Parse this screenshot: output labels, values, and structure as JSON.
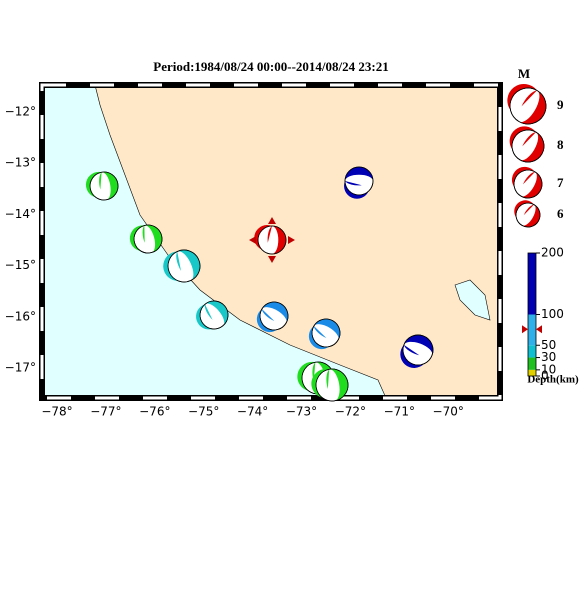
{
  "title": "Period:1984/08/24 00:00--2014/08/24 23:21",
  "lon_ticks": [
    "−78°",
    "−77°",
    "−76°",
    "−75°",
    "−74°",
    "−73°",
    "−72°",
    "−71°",
    "−70°"
  ],
  "lat_ticks": [
    "−12°",
    "−13°",
    "−14°",
    "−15°",
    "−16°",
    "−17°"
  ],
  "magnitude_legend": {
    "title": "M",
    "labels": [
      "9",
      "8",
      "7",
      "6"
    ]
  },
  "depth_scale": {
    "label": "Depth(km)",
    "ticks": [
      0,
      10,
      30,
      50,
      100,
      200
    ],
    "lim": [
      0,
      200
    ],
    "colors": [
      "#e0d000",
      "#20c020",
      "#10c0d0",
      "#30b0e8",
      "#0000b0"
    ],
    "marker": 76
  }
}
